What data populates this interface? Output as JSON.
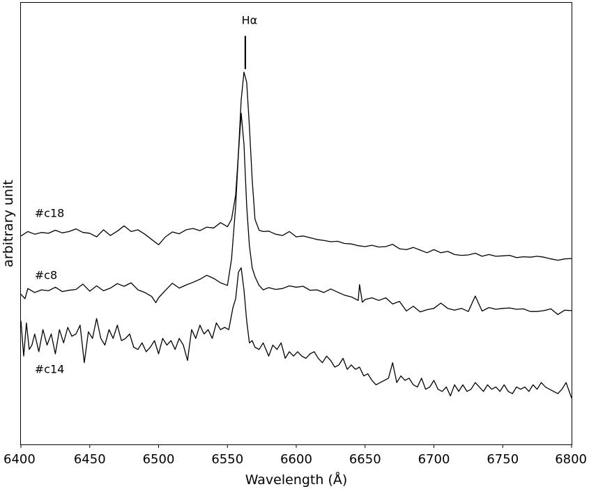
{
  "chart_data": {
    "type": "line",
    "title": "",
    "xlabel": "Wavelength (Å)",
    "ylabel": "arbitrary unit",
    "xlim": [
      6400,
      6800
    ],
    "ylim": [
      0,
      100
    ],
    "xticks": [
      6400,
      6450,
      6500,
      6550,
      6600,
      6650,
      6700,
      6750,
      6800
    ],
    "yticks_visible": false,
    "grid": false,
    "legend": "none",
    "line_color": "#000000",
    "annotation": {
      "label": "Hα",
      "x": 6563,
      "y_bottom": 85,
      "y_top": 92.5
    },
    "series": [
      {
        "name": "#c18",
        "label_pos": [
          6410,
          51.5
        ],
        "x": [
          6400,
          6405,
          6410,
          6415,
          6420,
          6425,
          6430,
          6435,
          6440,
          6445,
          6450,
          6455,
          6460,
          6465,
          6470,
          6475,
          6480,
          6485,
          6490,
          6495,
          6500,
          6505,
          6510,
          6515,
          6520,
          6525,
          6530,
          6535,
          6540,
          6545,
          6550,
          6553,
          6556,
          6558,
          6560,
          6562,
          6564,
          6566,
          6568,
          6570,
          6573,
          6576,
          6580,
          6585,
          6590,
          6595,
          6600,
          6605,
          6610,
          6615,
          6620,
          6625,
          6630,
          6635,
          6640,
          6645,
          6650,
          6655,
          6660,
          6665,
          6670,
          6675,
          6680,
          6685,
          6690,
          6695,
          6700,
          6705,
          6710,
          6715,
          6720,
          6725,
          6730,
          6735,
          6740,
          6745,
          6750,
          6755,
          6760,
          6765,
          6770,
          6775,
          6780,
          6785,
          6790,
          6795,
          6800
        ],
        "y": [
          47.2,
          48.2,
          47.6,
          48.0,
          47.8,
          48.5,
          47.9,
          48.2,
          48.8,
          48.0,
          47.8,
          47.0,
          48.6,
          47.3,
          48.3,
          49.5,
          48.2,
          48.6,
          47.6,
          46.4,
          45.2,
          47.0,
          48.1,
          47.7,
          48.6,
          48.9,
          48.4,
          49.2,
          49.0,
          50.2,
          49.3,
          51.0,
          56.5,
          66.0,
          78.0,
          84.3,
          82.0,
          72.0,
          60.0,
          51.0,
          48.5,
          48.2,
          48.3,
          47.6,
          47.3,
          48.2,
          47.0,
          47.2,
          46.8,
          46.4,
          46.2,
          45.9,
          46.0,
          45.5,
          45.4,
          45.0,
          44.8,
          45.1,
          44.7,
          44.8,
          45.3,
          44.3,
          44.1,
          44.6,
          44.0,
          43.4,
          44.1,
          43.4,
          43.7,
          43.0,
          42.8,
          42.9,
          43.3,
          42.6,
          43.0,
          42.6,
          42.7,
          42.8,
          42.3,
          42.5,
          42.4,
          42.6,
          42.4,
          42.0,
          41.7,
          42.0,
          42.1
        ]
      },
      {
        "name": "#c8",
        "label_pos": [
          6410,
          37.5
        ],
        "x": [
          6400,
          6403,
          6405,
          6410,
          6415,
          6420,
          6425,
          6430,
          6435,
          6440,
          6445,
          6450,
          6455,
          6460,
          6465,
          6470,
          6475,
          6480,
          6485,
          6490,
          6495,
          6498,
          6500,
          6505,
          6510,
          6515,
          6520,
          6525,
          6530,
          6535,
          6540,
          6545,
          6550,
          6553,
          6556,
          6558,
          6560,
          6562,
          6564,
          6566,
          6568,
          6570,
          6573,
          6576,
          6580,
          6585,
          6590,
          6595,
          6600,
          6605,
          6610,
          6615,
          6620,
          6625,
          6630,
          6635,
          6640,
          6645,
          6646,
          6648,
          6650,
          6655,
          6660,
          6665,
          6670,
          6675,
          6680,
          6685,
          6690,
          6695,
          6700,
          6705,
          6710,
          6715,
          6720,
          6725,
          6730,
          6735,
          6740,
          6745,
          6750,
          6755,
          6760,
          6765,
          6770,
          6775,
          6780,
          6785,
          6790,
          6795,
          6800
        ],
        "y": [
          34.0,
          33.0,
          35.3,
          34.4,
          35.0,
          34.8,
          35.6,
          34.6,
          34.9,
          35.1,
          36.3,
          34.7,
          35.9,
          34.8,
          35.4,
          36.4,
          35.8,
          36.6,
          35.0,
          34.4,
          33.5,
          32.1,
          33.2,
          34.9,
          36.5,
          35.4,
          36.1,
          36.7,
          37.4,
          38.3,
          37.6,
          36.6,
          36.0,
          42.0,
          54.0,
          66.0,
          75.0,
          68.0,
          54.0,
          45.0,
          40.0,
          38.0,
          36.0,
          35.0,
          35.5,
          35.1,
          35.3,
          35.9,
          35.6,
          35.8,
          34.9,
          35.0,
          34.4,
          35.2,
          34.5,
          33.8,
          33.4,
          32.6,
          36.2,
          32.2,
          32.8,
          33.2,
          32.6,
          33.2,
          31.8,
          32.4,
          30.2,
          31.3,
          30.0,
          30.5,
          30.8,
          32.0,
          30.8,
          30.4,
          30.8,
          30.1,
          33.6,
          30.2,
          31.0,
          30.6,
          30.8,
          30.9,
          30.6,
          30.7,
          30.1,
          30.1,
          30.3,
          30.7,
          29.4,
          30.4,
          30.3
        ]
      },
      {
        "name": "#c14",
        "label_pos": [
          6410,
          16.2
        ],
        "x": [
          6400,
          6402,
          6404,
          6406,
          6408,
          6410,
          6413,
          6416,
          6419,
          6422,
          6425,
          6428,
          6431,
          6434,
          6437,
          6440,
          6443,
          6446,
          6449,
          6452,
          6455,
          6458,
          6461,
          6464,
          6467,
          6470,
          6473,
          6476,
          6479,
          6482,
          6485,
          6488,
          6491,
          6494,
          6497,
          6500,
          6503,
          6506,
          6509,
          6512,
          6515,
          6518,
          6521,
          6524,
          6527,
          6530,
          6533,
          6536,
          6539,
          6542,
          6545,
          6548,
          6551,
          6554,
          6556,
          6558,
          6560,
          6562,
          6564,
          6566,
          6568,
          6570,
          6573,
          6576,
          6580,
          6583,
          6586,
          6589,
          6592,
          6595,
          6598,
          6601,
          6604,
          6607,
          6610,
          6613,
          6616,
          6619,
          6622,
          6625,
          6628,
          6631,
          6634,
          6637,
          6640,
          6643,
          6646,
          6649,
          6652,
          6655,
          6658,
          6661,
          6664,
          6667,
          6670,
          6673,
          6676,
          6679,
          6682,
          6685,
          6688,
          6691,
          6694,
          6697,
          6700,
          6703,
          6706,
          6709,
          6712,
          6715,
          6718,
          6721,
          6724,
          6727,
          6730,
          6733,
          6736,
          6739,
          6742,
          6745,
          6748,
          6751,
          6754,
          6757,
          6760,
          6763,
          6766,
          6769,
          6772,
          6775,
          6778,
          6781,
          6784,
          6787,
          6790,
          6793,
          6796,
          6800
        ],
        "y": [
          28.0,
          20.0,
          27.5,
          21.5,
          22.5,
          25.0,
          21.0,
          26.0,
          22.5,
          25.0,
          20.5,
          26.0,
          23.0,
          26.5,
          24.5,
          25.0,
          27.0,
          18.5,
          25.5,
          24.0,
          28.5,
          24.0,
          22.5,
          26.0,
          24.0,
          27.0,
          23.5,
          24.0,
          25.0,
          22.0,
          21.5,
          23.0,
          21.0,
          22.0,
          23.5,
          20.5,
          24.0,
          22.5,
          23.5,
          21.5,
          24.0,
          22.5,
          19.0,
          26.0,
          24.0,
          27.0,
          25.0,
          26.0,
          24.0,
          27.5,
          26.0,
          26.5,
          26.0,
          31.0,
          33.0,
          39.0,
          40.0,
          35.0,
          28.0,
          23.0,
          23.5,
          22.0,
          21.5,
          23.0,
          20.0,
          22.5,
          21.5,
          23.0,
          19.5,
          21.0,
          20.0,
          21.0,
          20.0,
          19.5,
          20.5,
          21.0,
          19.5,
          18.5,
          20.0,
          19.0,
          17.5,
          18.0,
          19.5,
          17.0,
          18.0,
          17.0,
          17.5,
          15.5,
          16.0,
          14.5,
          13.5,
          14.0,
          14.5,
          15.0,
          18.5,
          14.0,
          15.5,
          14.5,
          15.0,
          13.5,
          13.0,
          15.0,
          12.5,
          13.0,
          14.5,
          12.5,
          12.0,
          13.0,
          11.0,
          13.5,
          12.0,
          13.5,
          12.0,
          12.5,
          14.0,
          13.0,
          12.0,
          13.5,
          12.5,
          13.0,
          12.0,
          13.5,
          12.0,
          11.5,
          13.0,
          12.5,
          13.0,
          12.0,
          13.5,
          12.5,
          14.0,
          13.0,
          12.5,
          12.0,
          11.5,
          12.5,
          14.0,
          10.5
        ]
      }
    ]
  }
}
